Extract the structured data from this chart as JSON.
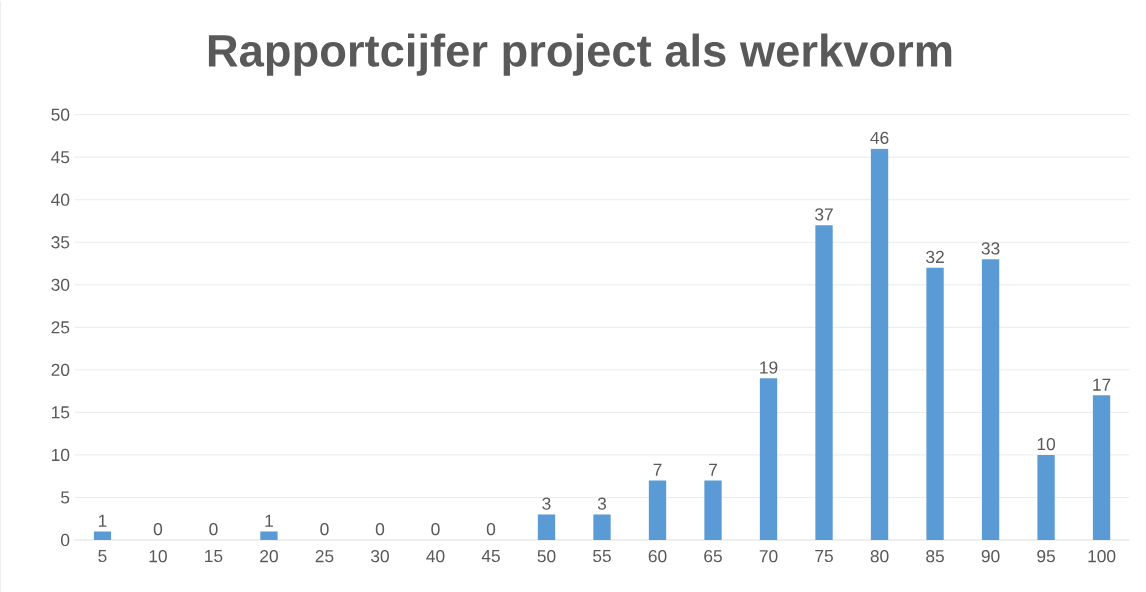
{
  "chart_data": {
    "type": "bar",
    "title": "Rapportcijfer  project als werkvorm",
    "categories": [
      "5",
      "10",
      "15",
      "20",
      "25",
      "30",
      "40",
      "45",
      "50",
      "55",
      "60",
      "65",
      "70",
      "75",
      "80",
      "85",
      "90",
      "95",
      "100"
    ],
    "values": [
      1,
      0,
      0,
      1,
      0,
      0,
      0,
      0,
      3,
      3,
      7,
      7,
      19,
      37,
      46,
      32,
      33,
      10,
      17
    ],
    "color": "#5b9bd5",
    "ylim": [
      0,
      50
    ],
    "yticks": [
      0,
      5,
      10,
      15,
      20,
      25,
      30,
      35,
      40,
      45,
      50
    ],
    "grid": "y",
    "data_labels": true
  }
}
